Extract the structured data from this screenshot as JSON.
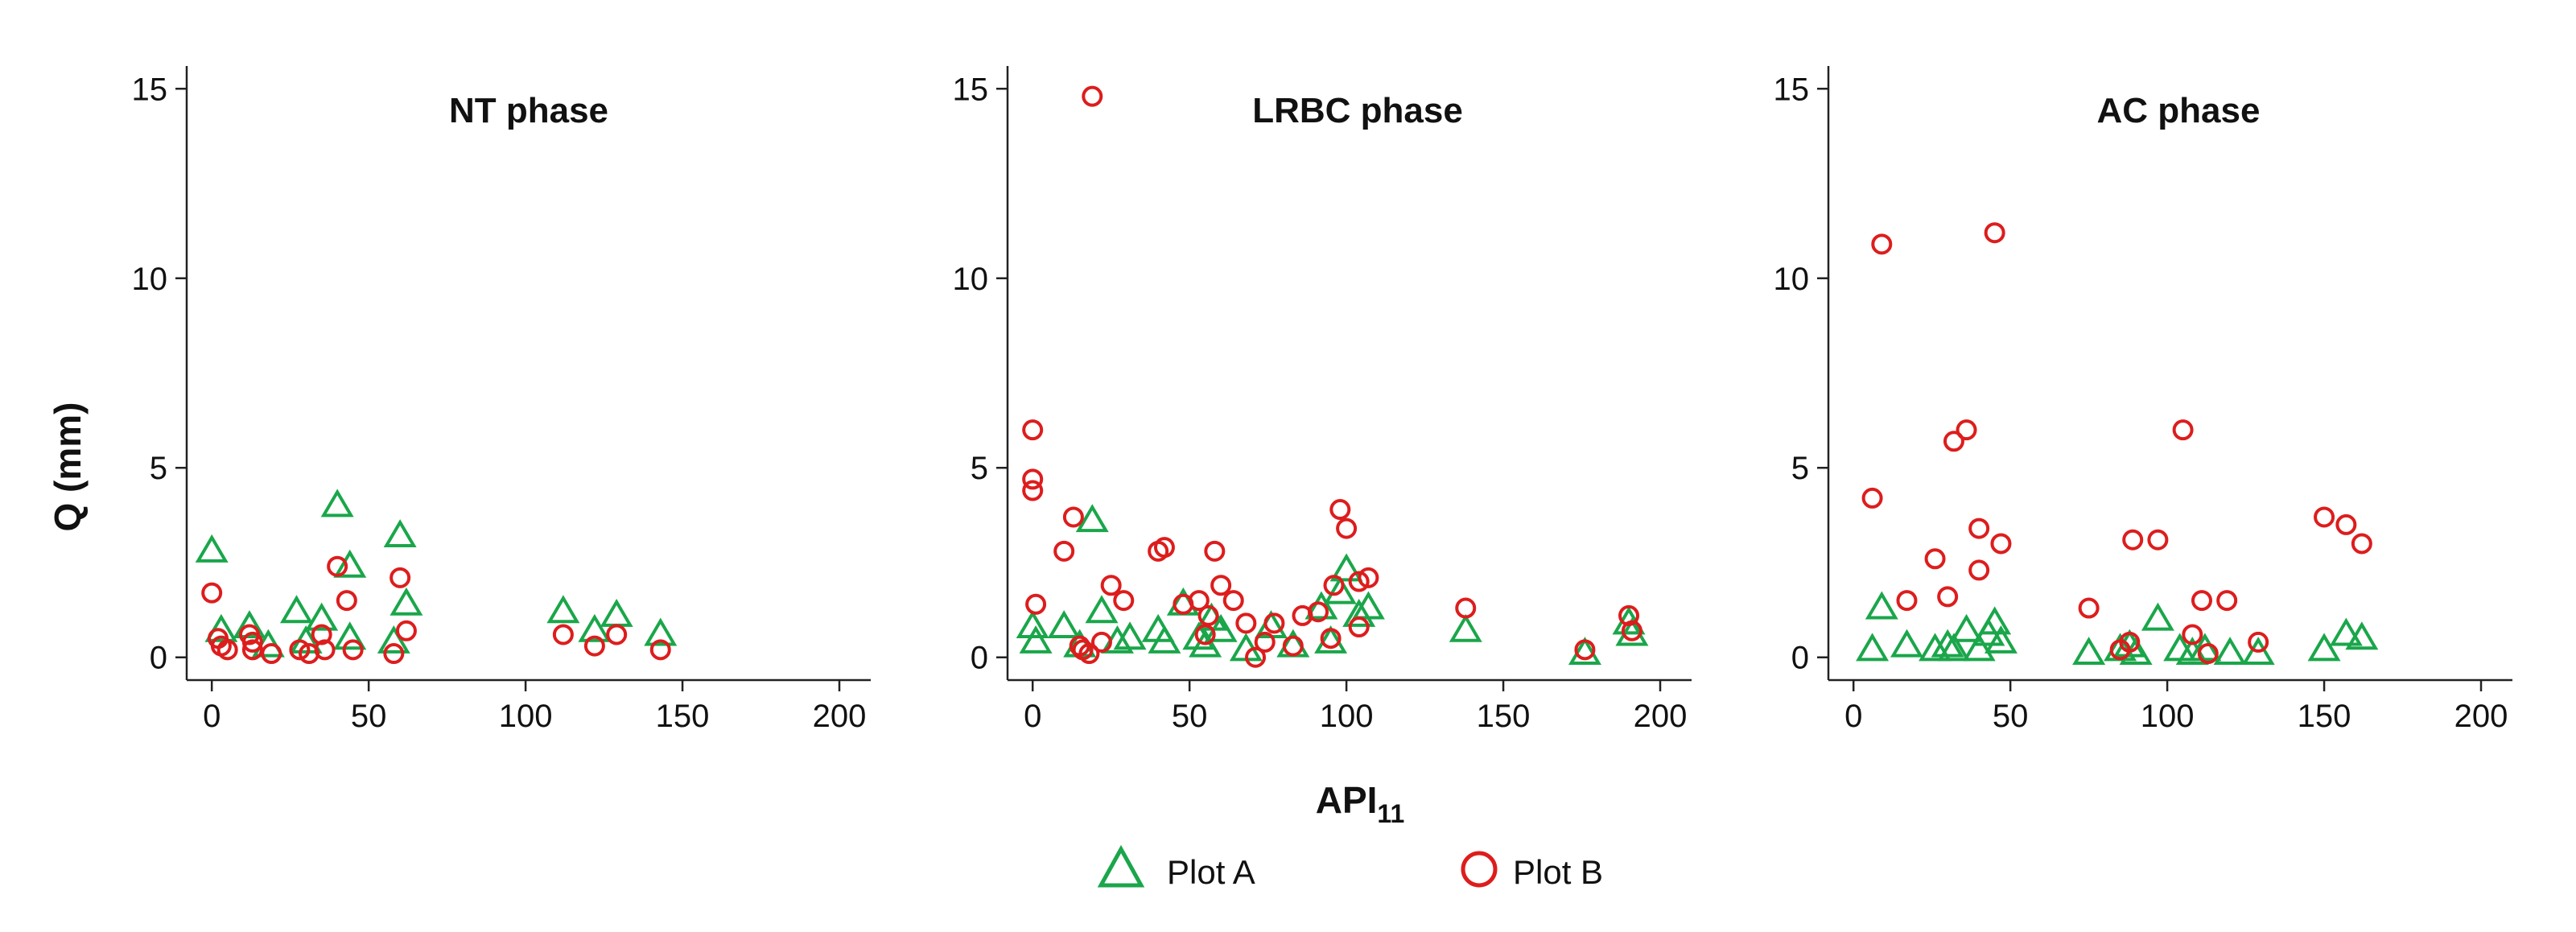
{
  "chart_data": {
    "type": "scatter",
    "ylabel": "Q (mm)",
    "xlabel_main": "API",
    "xlabel_sub": "11",
    "xlim": [
      -8,
      210
    ],
    "ylim": [
      -0.6,
      15.6
    ],
    "x_ticks": [
      0,
      50,
      100,
      150,
      200
    ],
    "y_ticks": [
      0,
      5,
      10,
      15
    ],
    "grid": false,
    "legend_position": "bottom-center",
    "legend": [
      {
        "name": "Plot A",
        "marker": "triangle",
        "color": "#1aa64a"
      },
      {
        "name": "Plot B",
        "marker": "circle",
        "color": "#dd1d1d"
      }
    ],
    "panels": [
      {
        "title": "NT phase",
        "series": [
          {
            "name": "Plot A",
            "points": [
              [
                0,
                2.8
              ],
              [
                3,
                0.7
              ],
              [
                12,
                0.8
              ],
              [
                18,
                0.3
              ],
              [
                27,
                1.2
              ],
              [
                35,
                1.0
              ],
              [
                40,
                4.0
              ],
              [
                44,
                2.4
              ],
              [
                44,
                0.5
              ],
              [
                60,
                3.2
              ],
              [
                62,
                1.4
              ],
              [
                58,
                0.4
              ],
              [
                112,
                1.2
              ],
              [
                122,
                0.7
              ],
              [
                129,
                1.1
              ],
              [
                143,
                0.6
              ],
              [
                30,
                0.4
              ]
            ]
          },
          {
            "name": "Plot B",
            "points": [
              [
                0,
                1.7
              ],
              [
                2,
                0.5
              ],
              [
                3,
                0.3
              ],
              [
                5,
                0.2
              ],
              [
                12,
                0.6
              ],
              [
                13,
                0.4
              ],
              [
                13,
                0.2
              ],
              [
                19,
                0.1
              ],
              [
                28,
                0.2
              ],
              [
                31,
                0.1
              ],
              [
                35,
                0.6
              ],
              [
                36,
                0.2
              ],
              [
                40,
                2.4
              ],
              [
                43,
                1.5
              ],
              [
                45,
                0.2
              ],
              [
                58,
                0.1
              ],
              [
                60,
                2.1
              ],
              [
                62,
                0.7
              ],
              [
                112,
                0.6
              ],
              [
                122,
                0.3
              ],
              [
                129,
                0.6
              ],
              [
                143,
                0.2
              ]
            ]
          }
        ]
      },
      {
        "title": "LRBC phase",
        "series": [
          {
            "name": "Plot A",
            "points": [
              [
                0,
                0.8
              ],
              [
                1,
                0.4
              ],
              [
                10,
                0.8
              ],
              [
                15,
                0.3
              ],
              [
                19,
                3.6
              ],
              [
                22,
                1.2
              ],
              [
                27,
                0.4
              ],
              [
                31,
                0.5
              ],
              [
                40,
                0.7
              ],
              [
                42,
                0.4
              ],
              [
                48,
                1.4
              ],
              [
                53,
                0.5
              ],
              [
                55,
                0.3
              ],
              [
                57,
                1.0
              ],
              [
                60,
                0.7
              ],
              [
                68,
                0.2
              ],
              [
                76,
                0.8
              ],
              [
                83,
                0.3
              ],
              [
                92,
                1.3
              ],
              [
                95,
                0.4
              ],
              [
                98,
                1.7
              ],
              [
                100,
                2.3
              ],
              [
                104,
                1.1
              ],
              [
                107,
                1.3
              ],
              [
                138,
                0.7
              ],
              [
                176,
                0.1
              ],
              [
                190,
                0.9
              ],
              [
                191,
                0.6
              ]
            ]
          },
          {
            "name": "Plot B",
            "points": [
              [
                0,
                6.0
              ],
              [
                0,
                4.7
              ],
              [
                0,
                4.4
              ],
              [
                1,
                1.4
              ],
              [
                10,
                2.8
              ],
              [
                13,
                3.7
              ],
              [
                15,
                0.3
              ],
              [
                16,
                0.2
              ],
              [
                18,
                0.1
              ],
              [
                19,
                14.8
              ],
              [
                22,
                0.4
              ],
              [
                25,
                1.9
              ],
              [
                29,
                1.5
              ],
              [
                40,
                2.8
              ],
              [
                42,
                2.9
              ],
              [
                48,
                1.4
              ],
              [
                53,
                1.5
              ],
              [
                55,
                0.6
              ],
              [
                56,
                1.1
              ],
              [
                58,
                2.8
              ],
              [
                60,
                1.9
              ],
              [
                64,
                1.5
              ],
              [
                68,
                0.9
              ],
              [
                71,
                0.0
              ],
              [
                74,
                0.4
              ],
              [
                77,
                0.9
              ],
              [
                83,
                0.3
              ],
              [
                86,
                1.1
              ],
              [
                91,
                1.2
              ],
              [
                95,
                0.5
              ],
              [
                96,
                1.9
              ],
              [
                98,
                3.9
              ],
              [
                100,
                3.4
              ],
              [
                104,
                2.0
              ],
              [
                104,
                0.8
              ],
              [
                107,
                2.1
              ],
              [
                138,
                1.3
              ],
              [
                176,
                0.2
              ],
              [
                190,
                1.1
              ],
              [
                191,
                0.7
              ]
            ]
          }
        ]
      },
      {
        "title": "AC phase",
        "series": [
          {
            "name": "Plot A",
            "points": [
              [
                6,
                0.2
              ],
              [
                9,
                1.3
              ],
              [
                17,
                0.3
              ],
              [
                26,
                0.2
              ],
              [
                30,
                0.3
              ],
              [
                32,
                0.2
              ],
              [
                36,
                0.7
              ],
              [
                40,
                0.2
              ],
              [
                43,
                0.6
              ],
              [
                45,
                0.9
              ],
              [
                47,
                0.4
              ],
              [
                75,
                0.1
              ],
              [
                85,
                0.2
              ],
              [
                88,
                0.3
              ],
              [
                90,
                0.1
              ],
              [
                97,
                1.0
              ],
              [
                104,
                0.2
              ],
              [
                108,
                0.1
              ],
              [
                112,
                0.2
              ],
              [
                120,
                0.1
              ],
              [
                129,
                0.1
              ],
              [
                150,
                0.2
              ],
              [
                157,
                0.6
              ],
              [
                162,
                0.5
              ]
            ]
          },
          {
            "name": "Plot B",
            "points": [
              [
                6,
                4.2
              ],
              [
                9,
                10.9
              ],
              [
                17,
                1.5
              ],
              [
                26,
                2.6
              ],
              [
                30,
                1.6
              ],
              [
                32,
                5.7
              ],
              [
                36,
                6.0
              ],
              [
                40,
                3.4
              ],
              [
                40,
                2.3
              ],
              [
                45,
                11.2
              ],
              [
                47,
                3.0
              ],
              [
                75,
                1.3
              ],
              [
                85,
                0.2
              ],
              [
                88,
                0.4
              ],
              [
                89,
                3.1
              ],
              [
                97,
                3.1
              ],
              [
                105,
                6.0
              ],
              [
                108,
                0.6
              ],
              [
                111,
                1.5
              ],
              [
                113,
                0.1
              ],
              [
                119,
                1.5
              ],
              [
                129,
                0.4
              ],
              [
                150,
                3.7
              ],
              [
                157,
                3.5
              ],
              [
                162,
                3.0
              ]
            ]
          }
        ]
      }
    ]
  }
}
